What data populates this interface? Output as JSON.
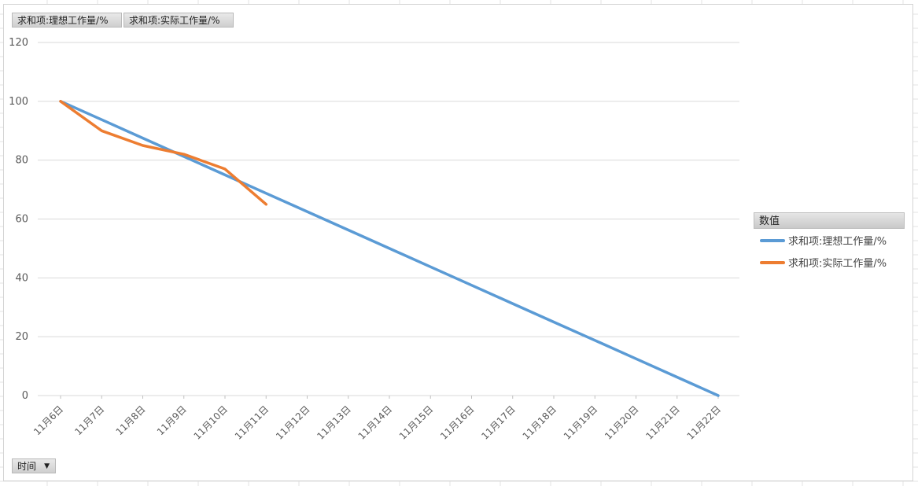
{
  "field_buttons": {
    "ideal": "求和项:理想工作量/%",
    "actual": "求和项:实际工作量/%",
    "axis_field": "时间"
  },
  "legend": {
    "title": "数值",
    "items": [
      {
        "label": "求和项:理想工作量/%",
        "color": "#5b9bd5"
      },
      {
        "label": "求和项:实际工作量/%",
        "color": "#ed7d31"
      }
    ]
  },
  "icons": {
    "axis_field_dropdown": "chevron-down-icon"
  },
  "chart_data": {
    "type": "line",
    "categories": [
      "11月6日",
      "11月7日",
      "11月8日",
      "11月9日",
      "11月10日",
      "11月11日",
      "11月12日",
      "11月13日",
      "11月14日",
      "11月15日",
      "11月16日",
      "11月17日",
      "11月18日",
      "11月19日",
      "11月20日",
      "11月21日",
      "11月22日"
    ],
    "series": [
      {
        "name": "求和项:理想工作量/%",
        "color": "#5b9bd5",
        "values": [
          100,
          93.75,
          87.5,
          81.25,
          75,
          68.75,
          62.5,
          56.25,
          50,
          43.75,
          37.5,
          31.25,
          25,
          18.75,
          12.5,
          6.25,
          0
        ]
      },
      {
        "name": "求和项:实际工作量/%",
        "color": "#ed7d31",
        "values": [
          100,
          90,
          85,
          82,
          77,
          65,
          null,
          null,
          null,
          null,
          null,
          null,
          null,
          null,
          null,
          null,
          null
        ]
      }
    ],
    "ylim": [
      0,
      120
    ],
    "yticks": [
      0,
      20,
      40,
      60,
      80,
      100,
      120
    ],
    "xlabel": "",
    "ylabel": "",
    "grid": true,
    "legend_position": "right"
  }
}
